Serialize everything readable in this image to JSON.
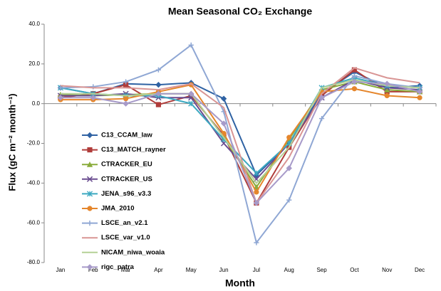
{
  "chart_data": {
    "type": "line",
    "title": "Mean Seasonal CO₂ Exchange",
    "x_label": "Month",
    "y_label": "Flux (gC m⁻² month⁻¹)",
    "categories": [
      "Jan",
      "Feb",
      "Mar",
      "Apr",
      "May",
      "Jun",
      "Jul",
      "Aug",
      "Sep",
      "Oct",
      "Nov",
      "Dec"
    ],
    "ylim": [
      -80,
      40
    ],
    "yticks": [
      {
        "value": 40,
        "label": "40.0"
      },
      {
        "value": 20,
        "label": "20.0"
      },
      {
        "value": 0,
        "label": "0.0"
      },
      {
        "value": -20,
        "label": "-20.0"
      },
      {
        "value": -40,
        "label": "-40.0"
      },
      {
        "value": -60,
        "label": "-60.0"
      },
      {
        "value": -80,
        "label": "-80.0"
      }
    ],
    "grid": false,
    "series": [
      {
        "name": "C13_CCAM_law",
        "color": "#2f62a3",
        "marker": "diamond",
        "values": [
          8,
          5,
          10,
          9.5,
          10.5,
          2.5,
          -36,
          -20,
          5,
          16,
          8,
          9
        ]
      },
      {
        "name": "C13_MATCH_rayner",
        "color": "#b03c3a",
        "marker": "square",
        "values": [
          3,
          5,
          9.5,
          -0.5,
          4,
          -16,
          -50,
          -22,
          4,
          17,
          6,
          6
        ]
      },
      {
        "name": "CTRACKER_EU",
        "color": "#8aac3c",
        "marker": "triangle",
        "values": [
          4.5,
          4,
          4.5,
          5,
          5,
          -17,
          -42,
          -18,
          7,
          11,
          7,
          6
        ]
      },
      {
        "name": "CTRACKER_US",
        "color": "#6a4d90",
        "marker": "x",
        "values": [
          4,
          4,
          5,
          3,
          3,
          -20,
          -38,
          -20,
          3,
          12,
          8,
          7
        ]
      },
      {
        "name": "JENA_s96_v3.3",
        "color": "#3ca9c1",
        "marker": "star",
        "values": [
          8,
          5,
          4,
          4,
          0,
          -18,
          -35,
          -20,
          8,
          13,
          9,
          8
        ]
      },
      {
        "name": "JMA_2010",
        "color": "#e5862c",
        "marker": "circle",
        "values": [
          2,
          2,
          2.5,
          6,
          9.5,
          -15,
          -44.5,
          -17,
          6,
          7.5,
          4,
          3
        ]
      },
      {
        "name": "LSCE_an_v2.1",
        "color": "#8fa7d4",
        "marker": "plus",
        "values": [
          8,
          8.5,
          11,
          17,
          29.5,
          -4,
          -70,
          -48.5,
          -7.5,
          14,
          10,
          8
        ]
      },
      {
        "name": "LSCE_var_v1.0",
        "color": "#d99594",
        "marker": "dash",
        "values": [
          9,
          8,
          8,
          7,
          10,
          -2,
          -50,
          -27,
          5,
          18,
          13,
          10.5
        ]
      },
      {
        "name": "NICAM_niwa_woaia",
        "color": "#b4d096",
        "marker": "dash",
        "values": [
          5,
          5,
          4,
          5,
          5,
          -17,
          -40,
          -22,
          8,
          12,
          9,
          8
        ]
      },
      {
        "name": "rigc_patra",
        "color": "#a79ac9",
        "marker": "diamond",
        "values": [
          3,
          3,
          0,
          5,
          5,
          -10,
          -50,
          -32.5,
          3,
          11,
          10,
          6
        ]
      }
    ]
  }
}
